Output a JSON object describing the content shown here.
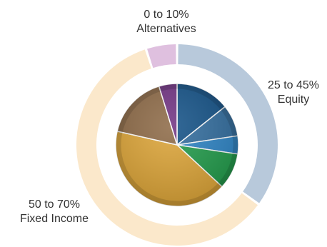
{
  "chart_data": {
    "type": "pie",
    "title": "",
    "outer_ring": {
      "labels_shown": true,
      "slices": [
        {
          "range": "25 to 45%",
          "name": "Equity",
          "value": 35,
          "color": "#b8c9db"
        },
        {
          "range": "50 to 70%",
          "name": "Fixed Income",
          "value": 60,
          "color": "#fbe8cb"
        },
        {
          "range": "0 to 10%",
          "name": "Alternatives",
          "value": 5,
          "color": "#dfc0df"
        }
      ]
    },
    "inner_pie": {
      "labels_shown": false,
      "slices": [
        {
          "group": "Equity",
          "value": 12,
          "color": "#0f4e84"
        },
        {
          "group": "Equity",
          "value": 7,
          "color": "#2e6a9c"
        },
        {
          "group": "Equity",
          "value": 4,
          "color": "#2a82c4"
        },
        {
          "group": "Equity",
          "value": 8,
          "color": "#1e9a48"
        },
        {
          "group": "Fixed Income",
          "value": 35,
          "color": "#dca334"
        },
        {
          "group": "Fixed Income",
          "value": 14,
          "color": "#8b6743"
        },
        {
          "group": "Alternatives",
          "value": 4,
          "color": "#6e2f80"
        }
      ]
    }
  }
}
